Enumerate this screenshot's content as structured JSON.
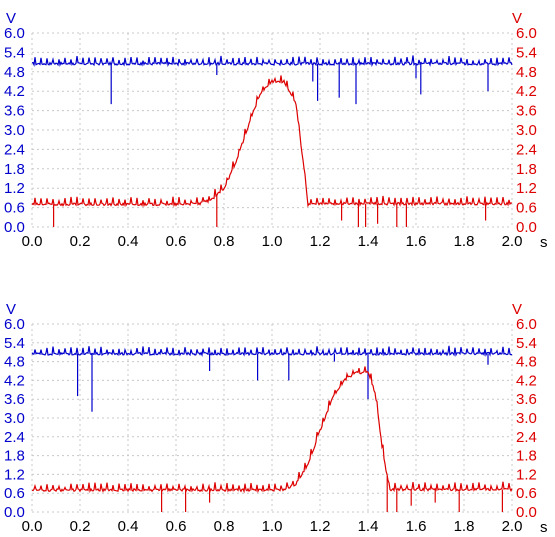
{
  "chart_data": [
    {
      "type": "line",
      "title": "",
      "y_left_unit": "V",
      "y_right_unit": "V",
      "x_unit": "s",
      "xlim": [
        0,
        2.0
      ],
      "ylim": [
        0,
        6.0
      ],
      "x_ticks": [
        "0.0",
        "0.2",
        "0.4",
        "0.6",
        "0.8",
        "1.0",
        "1.2",
        "1.4",
        "1.6",
        "1.8",
        "2.0"
      ],
      "y_ticks": [
        "0.0",
        "0.6",
        "1.2",
        "1.8",
        "2.4",
        "3.0",
        "3.6",
        "4.2",
        "4.8",
        "5.4",
        "6.0"
      ],
      "grid": true,
      "series": [
        {
          "color": "#0000cc",
          "axis": "left",
          "x": [
            0.0,
            0.1,
            0.2,
            0.3,
            0.4,
            0.5,
            0.6,
            0.7,
            0.8,
            0.9,
            1.0,
            1.1,
            1.2,
            1.3,
            1.4,
            1.5,
            1.6,
            1.7,
            1.8,
            1.9,
            2.0
          ],
          "y": [
            5.05,
            5.05,
            5.05,
            5.05,
            5.05,
            5.05,
            5.05,
            5.05,
            5.05,
            5.05,
            5.05,
            5.05,
            5.05,
            5.05,
            5.05,
            5.05,
            5.05,
            5.05,
            5.05,
            5.05,
            5.05
          ],
          "spikes": [
            [
              0.33,
              3.8
            ],
            [
              0.77,
              4.7
            ],
            [
              1.17,
              4.5
            ],
            [
              1.19,
              3.9
            ],
            [
              1.28,
              4.0
            ],
            [
              1.35,
              3.8
            ],
            [
              1.6,
              4.6
            ],
            [
              1.62,
              4.1
            ],
            [
              1.9,
              4.2
            ]
          ]
        },
        {
          "color": "#dd0000",
          "axis": "right",
          "x": [
            0.0,
            0.2,
            0.4,
            0.6,
            0.7,
            0.75,
            0.8,
            0.85,
            0.9,
            0.95,
            1.0,
            1.05,
            1.1,
            1.13,
            1.15,
            1.2,
            1.4,
            1.6,
            1.8,
            2.0
          ],
          "y": [
            0.7,
            0.7,
            0.7,
            0.7,
            0.72,
            0.85,
            1.2,
            2.0,
            3.1,
            4.1,
            4.5,
            4.5,
            3.8,
            2.0,
            0.7,
            0.72,
            0.72,
            0.72,
            0.72,
            0.72
          ],
          "spikes": [
            [
              0.09,
              0.0
            ],
            [
              0.77,
              0.0
            ],
            [
              1.29,
              0.2
            ],
            [
              1.36,
              0.0
            ],
            [
              1.39,
              0.0
            ],
            [
              1.44,
              0.1
            ],
            [
              1.52,
              0.0
            ],
            [
              1.56,
              0.0
            ],
            [
              1.89,
              0.2
            ]
          ]
        }
      ]
    },
    {
      "type": "line",
      "title": "",
      "y_left_unit": "V",
      "y_right_unit": "V",
      "x_unit": "s",
      "xlim": [
        0,
        2.0
      ],
      "ylim": [
        0,
        6.0
      ],
      "x_ticks": [
        "0.0",
        "0.2",
        "0.4",
        "0.6",
        "0.8",
        "1.0",
        "1.2",
        "1.4",
        "1.6",
        "1.8",
        "2.0"
      ],
      "y_ticks": [
        "0.0",
        "0.6",
        "1.2",
        "1.8",
        "2.4",
        "3.0",
        "3.6",
        "4.2",
        "4.8",
        "5.4",
        "6.0"
      ],
      "grid": true,
      "series": [
        {
          "color": "#0000cc",
          "axis": "left",
          "x": [
            0.0,
            0.1,
            0.2,
            0.3,
            0.4,
            0.5,
            0.6,
            0.7,
            0.8,
            0.9,
            1.0,
            1.1,
            1.2,
            1.3,
            1.4,
            1.5,
            1.6,
            1.7,
            1.8,
            1.9,
            2.0
          ],
          "y": [
            5.05,
            5.05,
            5.05,
            5.05,
            5.05,
            5.05,
            5.05,
            5.05,
            5.05,
            5.05,
            5.05,
            5.05,
            5.05,
            5.05,
            5.05,
            5.05,
            5.05,
            5.05,
            5.05,
            5.05,
            5.05
          ],
          "spikes": [
            [
              0.19,
              3.7
            ],
            [
              0.25,
              3.2
            ],
            [
              0.74,
              4.5
            ],
            [
              0.94,
              4.2
            ],
            [
              1.07,
              4.2
            ],
            [
              1.26,
              4.8
            ],
            [
              1.4,
              3.6
            ],
            [
              1.9,
              4.7
            ]
          ]
        },
        {
          "color": "#dd0000",
          "axis": "right",
          "x": [
            0.0,
            0.2,
            0.4,
            0.6,
            0.8,
            1.0,
            1.05,
            1.1,
            1.15,
            1.2,
            1.25,
            1.3,
            1.35,
            1.4,
            1.43,
            1.46,
            1.49,
            1.55,
            1.8,
            2.0
          ],
          "y": [
            0.7,
            0.7,
            0.7,
            0.7,
            0.7,
            0.7,
            0.72,
            0.9,
            1.5,
            2.6,
            3.6,
            4.2,
            4.45,
            4.45,
            3.8,
            2.0,
            0.7,
            0.72,
            0.72,
            0.72
          ],
          "spikes": [
            [
              0.54,
              0.0
            ],
            [
              0.64,
              0.0
            ],
            [
              0.74,
              0.3
            ],
            [
              1.48,
              0.0
            ],
            [
              1.52,
              0.0
            ],
            [
              1.58,
              0.2
            ],
            [
              1.68,
              0.3
            ],
            [
              1.78,
              0.0
            ],
            [
              1.96,
              0.0
            ]
          ]
        }
      ]
    }
  ]
}
